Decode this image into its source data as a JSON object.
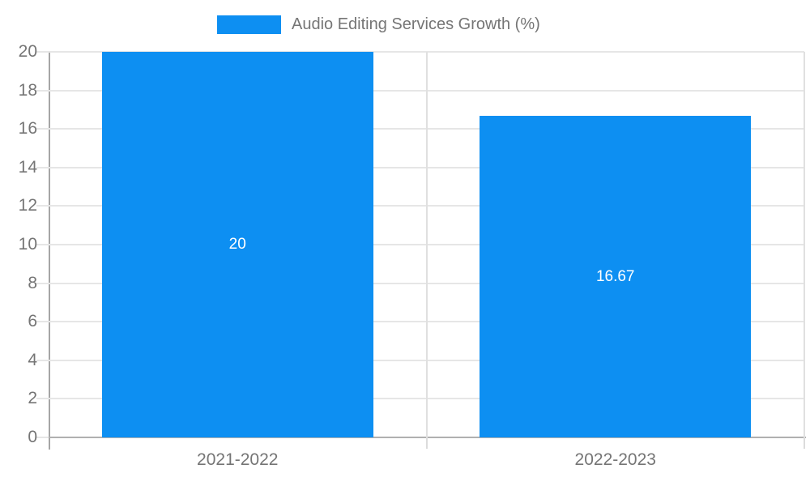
{
  "chart_data": {
    "type": "bar",
    "title": "Audio Editing Services Growth (%)",
    "categories": [
      "2021-2022",
      "2022-2023"
    ],
    "values": [
      20,
      16.67
    ],
    "bar_labels": [
      "20",
      "16.67"
    ],
    "xlabel": "",
    "ylabel": "",
    "ylim": [
      0,
      20
    ],
    "yticks": [
      0,
      2,
      4,
      6,
      8,
      10,
      12,
      14,
      16,
      18,
      20
    ],
    "grid": true,
    "legend_position": "top-center",
    "colors": {
      "bar": "#0d8ff2",
      "grid": "#e6e6e6",
      "vertical_grid": "#e0e0e0",
      "axis": "#a6a6a6",
      "tick_text": "#757575",
      "bar_label_text": "#ffffff",
      "background": "#ffffff"
    }
  }
}
